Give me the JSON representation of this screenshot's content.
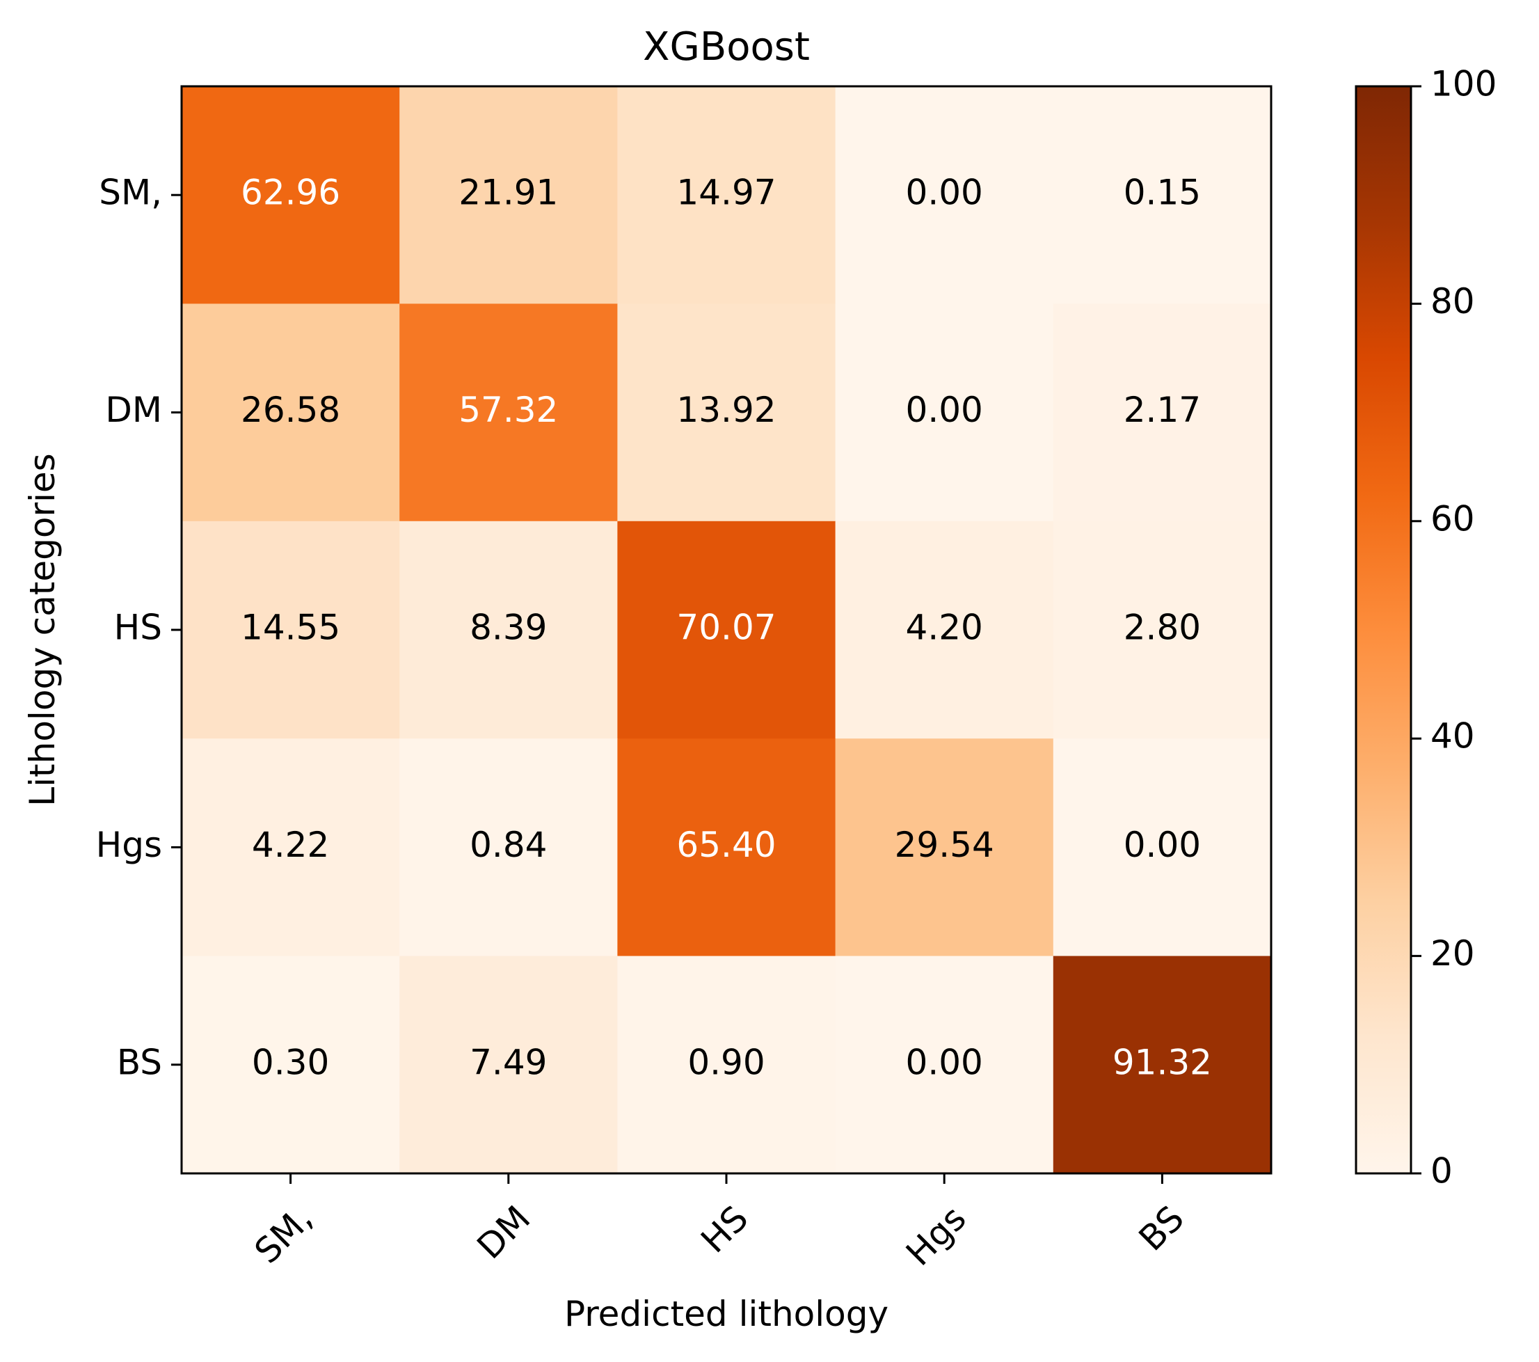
{
  "chart_data": {
    "type": "heatmap",
    "title": "XGBoost",
    "xlabel": "Predicted lithology",
    "ylabel": "Lithology categories",
    "x_categories": [
      "SM,",
      "DM",
      "HS",
      "Hgs",
      "BS"
    ],
    "y_categories": [
      "SM,",
      "DM",
      "HS",
      "Hgs",
      "BS"
    ],
    "values": [
      [
        62.96,
        21.91,
        14.97,
        0.0,
        0.15
      ],
      [
        26.58,
        57.32,
        13.92,
        0.0,
        2.17
      ],
      [
        14.55,
        8.39,
        70.07,
        4.2,
        2.8
      ],
      [
        4.22,
        0.84,
        65.4,
        29.54,
        0.0
      ],
      [
        0.3,
        7.49,
        0.9,
        0.0,
        91.32
      ]
    ],
    "value_labels": [
      [
        "62.96",
        "21.91",
        "14.97",
        "0.00",
        "0.15"
      ],
      [
        "26.58",
        "57.32",
        "13.92",
        "0.00",
        "2.17"
      ],
      [
        "14.55",
        "8.39",
        "70.07",
        "4.20",
        "2.80"
      ],
      [
        "4.22",
        "0.84",
        "65.40",
        "29.54",
        "0.00"
      ],
      [
        "0.30",
        "7.49",
        "0.90",
        "0.00",
        "91.32"
      ]
    ],
    "colormap": "Oranges",
    "colormap_stops": [
      "#fff5eb",
      "#fee6ce",
      "#fdd0a2",
      "#fdae6b",
      "#fd8d3c",
      "#f16913",
      "#d94801",
      "#a63603",
      "#7f2704"
    ],
    "text_colors": {
      "dark": "#000000",
      "light": "#ffffff"
    },
    "colorbar": {
      "range": [
        0,
        100
      ],
      "ticks": [
        0,
        20,
        40,
        60,
        80,
        100
      ],
      "tick_labels": [
        "0",
        "20",
        "40",
        "60",
        "80",
        "100"
      ]
    }
  }
}
